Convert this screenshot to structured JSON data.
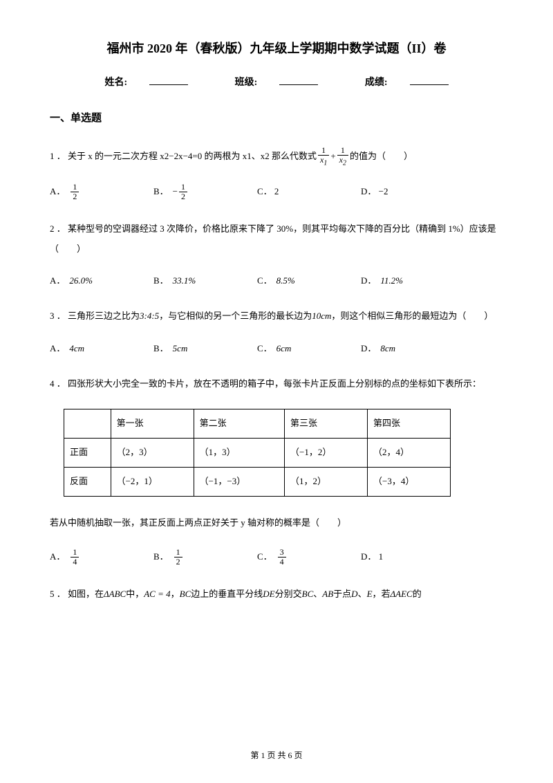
{
  "title": "福州市 2020 年（春秋版）九年级上学期期中数学试题（II）卷",
  "info": {
    "name_label": "姓名:",
    "class_label": "班级:",
    "score_label": "成绩:"
  },
  "section1_title": "一、单选题",
  "q1": {
    "pre": "1 ． 关于 x 的一元二次方程 x2−2x−4=0 的两根为 x1、x2 那么代数式",
    "post": " 的值为（　　）",
    "frac1_num": "1",
    "frac1_den": "x",
    "frac1_sub": "1",
    "plus": "+",
    "frac2_num": "1",
    "frac2_den": "x",
    "frac2_sub": "2"
  },
  "q1_opts": {
    "A_num": "1",
    "A_den": "2",
    "B_pre": "−",
    "B_num": "1",
    "B_den": "2",
    "C": "C． 2",
    "D": "D． −2"
  },
  "q2": {
    "text": "2 ． 某种型号的空调器经过 3 次降价，价格比原来下降了 30%，则其平均每次下降的百分比（精确到 1%）应该是（　　）"
  },
  "q2_opts": {
    "A": "26.0%",
    "B": "33.1%",
    "C": "8.5%",
    "D": "11.2%"
  },
  "q3": {
    "pre": "3 ． 三角形三边之比为",
    "ratio": "3:4:5",
    "mid": "，与它相似的另一个三角形的最长边为",
    "val": "10cm",
    "post": "，则这个相似三角形的最短边为（　　）"
  },
  "q3_opts": {
    "A": "4cm",
    "B": "5cm",
    "C": "6cm",
    "D": "8cm"
  },
  "q4": {
    "text": "4 ． 四张形状大小完全一致的卡片，放在不透明的箱子中，每张卡片正反面上分别标的点的坐标如下表所示："
  },
  "table": {
    "headers": [
      "",
      "第一张",
      "第二张",
      "第三张",
      "第四张"
    ],
    "rows": [
      [
        "正面",
        "（2，3）",
        "（1，3）",
        "（−1，2）",
        "（2，4）"
      ],
      [
        "反面",
        "（−2，1）",
        "（−1，−3）",
        "（1，2）",
        "（−3，4）"
      ]
    ]
  },
  "q4b": {
    "text": "若从中随机抽取一张，其正反面上两点正好关于 y 轴对称的概率是（　　）"
  },
  "q4_opts": {
    "A_num": "1",
    "A_den": "4",
    "B_num": "1",
    "B_den": "2",
    "C_num": "3",
    "C_den": "4",
    "D": "D． 1"
  },
  "q5": {
    "pre": "5 ． 如图，在",
    "t1": "ΔABC",
    "mid1": "中，",
    "eq": "AC = 4",
    "mid2": "，",
    "seg": "BC",
    "mid3": "边上的垂直平分线",
    "de": "DE",
    "mid4": " 分别交",
    "bc": "BC",
    "mid5": "、",
    "ab": "AB",
    "mid6": "于点",
    "d": "D",
    "mid7": "、",
    "e": "E",
    "mid8": "，若",
    "aec": "ΔAEC",
    "post": "的"
  },
  "footer": "第 1 页 共 6 页",
  "labels": {
    "A": "A．",
    "B": "B．",
    "C": "C．",
    "D": "D．"
  }
}
